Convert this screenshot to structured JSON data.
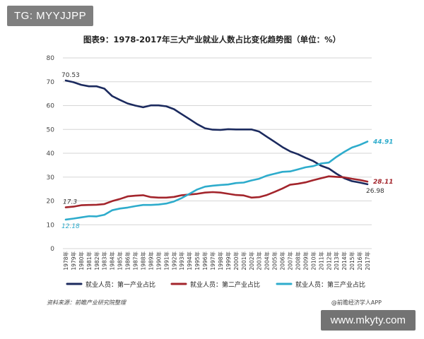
{
  "tag": "TG: MYYJJPP",
  "watermark_bottom": "www.mkyty.com",
  "source_left": "资料来源：前瞻产业研究院整理",
  "source_right": "@前瞻经济学人APP",
  "chart_data": {
    "type": "line",
    "title": "图表9：1978-2017年三大产业就业人数占比变化趋势图（单位：%）",
    "ylim": [
      0,
      80
    ],
    "yticks": [
      0,
      10,
      20,
      30,
      40,
      50,
      60,
      70,
      80
    ],
    "grid": true,
    "legend_position": "bottom",
    "categories": [
      "1978年",
      "1979年",
      "1980年",
      "1981年",
      "1982年",
      "1983年",
      "1984年",
      "1985年",
      "1986年",
      "1987年",
      "1988年",
      "1989年",
      "1990年",
      "1991年",
      "1992年",
      "1993年",
      "1994年",
      "1995年",
      "1996年",
      "1997年",
      "1998年",
      "1999年",
      "2000年",
      "2001年",
      "2002年",
      "2003年",
      "2004年",
      "2005年",
      "2006年",
      "2007年",
      "2008年",
      "2009年",
      "2010年",
      "2011年",
      "2012年",
      "2013年",
      "2014年",
      "2015年",
      "2016年",
      "2017年"
    ],
    "series": [
      {
        "name": "就业人员：第一产业占比",
        "color": "#1b2a5e",
        "values": [
          70.53,
          69.8,
          68.7,
          68.1,
          68.1,
          67.1,
          64.0,
          62.4,
          60.9,
          60.0,
          59.3,
          60.1,
          60.1,
          59.7,
          58.5,
          56.4,
          54.3,
          52.2,
          50.5,
          49.9,
          49.8,
          50.1,
          50.0,
          50.0,
          50.0,
          49.1,
          46.9,
          44.8,
          42.6,
          40.8,
          39.6,
          38.1,
          36.7,
          34.8,
          33.6,
          31.4,
          29.5,
          28.3,
          27.7,
          26.98
        ],
        "start_label": "70.53",
        "end_label": "26.98"
      },
      {
        "name": "就业人员：第二产业占比",
        "color": "#a3252c",
        "values": [
          17.3,
          17.6,
          18.2,
          18.3,
          18.4,
          18.7,
          19.9,
          20.8,
          21.9,
          22.2,
          22.4,
          21.6,
          21.4,
          21.4,
          21.7,
          22.4,
          22.7,
          23.0,
          23.5,
          23.7,
          23.5,
          23.0,
          22.5,
          22.3,
          21.4,
          21.6,
          22.5,
          23.8,
          25.2,
          26.8,
          27.2,
          27.8,
          28.7,
          29.5,
          30.3,
          30.1,
          29.9,
          29.3,
          28.8,
          28.11
        ],
        "start_label": "17.3",
        "end_label": "28.11"
      },
      {
        "name": "就业人员：第三产业占比",
        "color": "#2eaccc",
        "values": [
          12.18,
          12.6,
          13.1,
          13.6,
          13.5,
          14.2,
          16.1,
          16.8,
          17.2,
          17.8,
          18.3,
          18.3,
          18.5,
          18.9,
          19.8,
          21.2,
          23.0,
          24.8,
          26.0,
          26.4,
          26.7,
          26.9,
          27.5,
          27.7,
          28.6,
          29.3,
          30.6,
          31.4,
          32.2,
          32.4,
          33.2,
          34.1,
          34.6,
          35.7,
          36.1,
          38.5,
          40.6,
          42.4,
          43.5,
          44.91
        ],
        "start_label": "12.18",
        "end_label": "44.91"
      }
    ]
  }
}
